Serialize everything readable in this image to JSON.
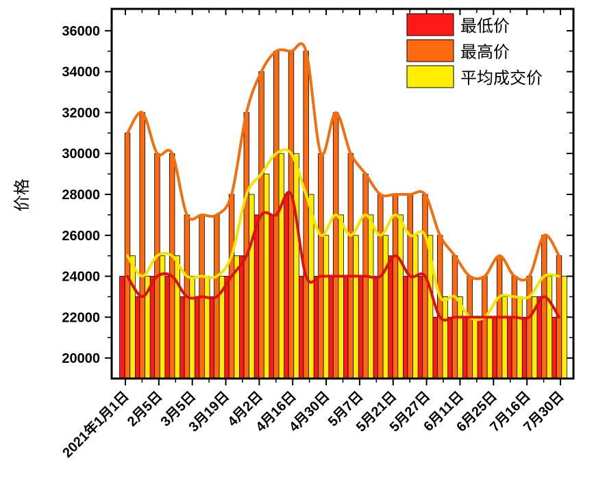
{
  "chart_data": {
    "type": "bar",
    "title": "",
    "xlabel": "",
    "ylabel": "价格",
    "ylim": [
      19000,
      37000
    ],
    "yticks": [
      20000,
      22000,
      24000,
      26000,
      28000,
      30000,
      32000,
      34000,
      36000
    ],
    "ytick_labels": [
      "20000",
      "22000",
      "24000",
      "26000",
      "28000",
      "30000",
      "32000",
      "34000",
      "36000"
    ],
    "xtick_labels": [
      "2021年1月1日",
      "2月5日",
      "3月5日",
      "3月19日",
      "4月2日",
      "4月16日",
      "4月30日",
      "5月7日",
      "5月21日",
      "5月27日",
      "6月11日",
      "6月25日",
      "7月16日",
      "7月30日"
    ],
    "legend_position": "top-right",
    "series": [
      {
        "name": "最低价",
        "color": "#ff1a1a",
        "line_color": "#dd1111",
        "values": [
          24000,
          23000,
          24000,
          24000,
          23000,
          23000,
          23000,
          24000,
          25000,
          27000,
          27000,
          28000,
          24000,
          24000,
          24000,
          24000,
          24000,
          24000,
          25000,
          24000,
          24000,
          22000,
          22000,
          22000,
          22000,
          22000,
          22000,
          22000,
          23000,
          22000
        ]
      },
      {
        "name": "最高价",
        "color": "#ff6a10",
        "line_color": "#f07010",
        "values": [
          31000,
          32000,
          30000,
          30000,
          27000,
          27000,
          27000,
          28000,
          32000,
          34000,
          35000,
          35000,
          35000,
          30000,
          32000,
          30000,
          29000,
          28000,
          28000,
          28000,
          28000,
          26000,
          25000,
          24000,
          24000,
          25000,
          24000,
          24000,
          26000,
          25000
        ]
      },
      {
        "name": "平均成交价",
        "color": "#ffee00",
        "line_color": "#f2e600",
        "values": [
          25000,
          24000,
          25000,
          25000,
          24000,
          24000,
          24000,
          25000,
          28000,
          29000,
          30000,
          30000,
          28000,
          26000,
          27000,
          26000,
          27000,
          26000,
          27000,
          26000,
          26000,
          23000,
          23000,
          22000,
          22000,
          23000,
          23000,
          23000,
          24000,
          24000
        ]
      }
    ]
  }
}
